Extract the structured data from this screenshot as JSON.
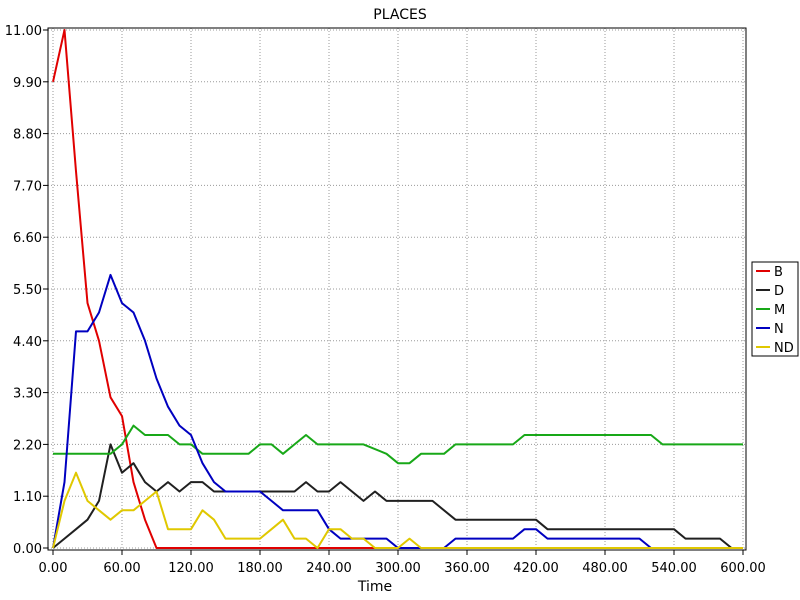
{
  "chart_data": {
    "type": "line",
    "title": "PLACES",
    "xlabel": "Time",
    "ylabel": "",
    "xlim": [
      0,
      600
    ],
    "ylim": [
      0,
      11
    ],
    "xticks": [
      "0.00",
      "60.00",
      "120.00",
      "180.00",
      "240.00",
      "300.00",
      "360.00",
      "420.00",
      "480.00",
      "540.00",
      "600.00"
    ],
    "yticks": [
      "0.00",
      "1.10",
      "2.20",
      "3.30",
      "4.40",
      "5.50",
      "6.60",
      "7.70",
      "8.80",
      "9.90",
      "11.00"
    ],
    "grid": true,
    "legend_position": "right",
    "series": [
      {
        "name": "B",
        "color": "#e00000",
        "points": [
          [
            0,
            9.9
          ],
          [
            10,
            11
          ],
          [
            20,
            8
          ],
          [
            30,
            5.2
          ],
          [
            40,
            4.4
          ],
          [
            50,
            3.2
          ],
          [
            60,
            2.8
          ],
          [
            70,
            1.4
          ],
          [
            80,
            0.6
          ],
          [
            90,
            0
          ],
          [
            280,
            0
          ]
        ]
      },
      {
        "name": "D",
        "color": "#202020",
        "points": [
          [
            0,
            0
          ],
          [
            10,
            0.2
          ],
          [
            20,
            0.4
          ],
          [
            30,
            0.6
          ],
          [
            40,
            1
          ],
          [
            50,
            2.2
          ],
          [
            60,
            1.6
          ],
          [
            70,
            1.8
          ],
          [
            80,
            1.4
          ],
          [
            90,
            1.2
          ],
          [
            100,
            1.4
          ],
          [
            110,
            1.2
          ],
          [
            120,
            1.4
          ],
          [
            130,
            1.4
          ],
          [
            140,
            1.2
          ],
          [
            150,
            1.2
          ],
          [
            160,
            1.2
          ],
          [
            210,
            1.2
          ],
          [
            220,
            1.4
          ],
          [
            230,
            1.2
          ],
          [
            240,
            1.2
          ],
          [
            250,
            1.4
          ],
          [
            260,
            1.2
          ],
          [
            270,
            1
          ],
          [
            280,
            1.2
          ],
          [
            290,
            1
          ],
          [
            330,
            1
          ],
          [
            350,
            0.6
          ],
          [
            420,
            0.6
          ],
          [
            430,
            0.4
          ],
          [
            540,
            0.4
          ],
          [
            550,
            0.2
          ],
          [
            580,
            0.2
          ],
          [
            590,
            0
          ],
          [
            600,
            0
          ]
        ]
      },
      {
        "name": "M",
        "color": "#18a818",
        "points": [
          [
            0,
            2
          ],
          [
            50,
            2
          ],
          [
            60,
            2.2
          ],
          [
            70,
            2.6
          ],
          [
            80,
            2.4
          ],
          [
            100,
            2.4
          ],
          [
            110,
            2.2
          ],
          [
            120,
            2.2
          ],
          [
            130,
            2
          ],
          [
            170,
            2
          ],
          [
            180,
            2.2
          ],
          [
            190,
            2.2
          ],
          [
            200,
            2
          ],
          [
            210,
            2.2
          ],
          [
            220,
            2.4
          ],
          [
            230,
            2.2
          ],
          [
            270,
            2.2
          ],
          [
            290,
            2
          ],
          [
            300,
            1.8
          ],
          [
            310,
            1.8
          ],
          [
            320,
            2
          ],
          [
            340,
            2
          ],
          [
            350,
            2.2
          ],
          [
            400,
            2.2
          ],
          [
            410,
            2.4
          ],
          [
            510,
            2.4
          ],
          [
            520,
            2.4
          ],
          [
            530,
            2.2
          ],
          [
            600,
            2.2
          ]
        ]
      },
      {
        "name": "N",
        "color": "#0000c0",
        "points": [
          [
            0,
            0
          ],
          [
            10,
            1.4
          ],
          [
            20,
            4.6
          ],
          [
            30,
            4.6
          ],
          [
            40,
            5
          ],
          [
            50,
            5.8
          ],
          [
            60,
            5.2
          ],
          [
            70,
            5
          ],
          [
            80,
            4.4
          ],
          [
            90,
            3.6
          ],
          [
            100,
            3
          ],
          [
            110,
            2.6
          ],
          [
            120,
            2.4
          ],
          [
            130,
            1.8
          ],
          [
            140,
            1.4
          ],
          [
            150,
            1.2
          ],
          [
            180,
            1.2
          ],
          [
            190,
            1
          ],
          [
            200,
            0.8
          ],
          [
            230,
            0.8
          ],
          [
            240,
            0.4
          ],
          [
            250,
            0.2
          ],
          [
            290,
            0.2
          ],
          [
            300,
            0
          ],
          [
            340,
            0
          ],
          [
            350,
            0.2
          ],
          [
            400,
            0.2
          ],
          [
            410,
            0.4
          ],
          [
            420,
            0.4
          ],
          [
            430,
            0.2
          ],
          [
            510,
            0.2
          ],
          [
            520,
            0
          ],
          [
            600,
            0
          ]
        ]
      },
      {
        "name": "ND",
        "color": "#e0c800",
        "points": [
          [
            0,
            0
          ],
          [
            10,
            1
          ],
          [
            20,
            1.6
          ],
          [
            30,
            1
          ],
          [
            40,
            0.8
          ],
          [
            50,
            0.6
          ],
          [
            60,
            0.8
          ],
          [
            70,
            0.8
          ],
          [
            80,
            1
          ],
          [
            90,
            1.2
          ],
          [
            100,
            0.4
          ],
          [
            120,
            0.4
          ],
          [
            130,
            0.8
          ],
          [
            140,
            0.6
          ],
          [
            150,
            0.2
          ],
          [
            180,
            0.2
          ],
          [
            190,
            0.4
          ],
          [
            200,
            0.6
          ],
          [
            210,
            0.2
          ],
          [
            220,
            0.2
          ],
          [
            230,
            0
          ],
          [
            240,
            0.4
          ],
          [
            250,
            0.4
          ],
          [
            260,
            0.2
          ],
          [
            270,
            0.2
          ],
          [
            280,
            0
          ],
          [
            300,
            0
          ],
          [
            310,
            0.2
          ],
          [
            320,
            0
          ],
          [
            600,
            0
          ]
        ]
      }
    ]
  }
}
